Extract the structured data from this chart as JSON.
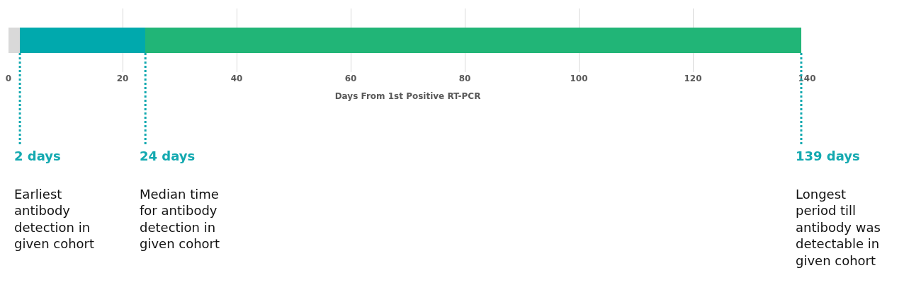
{
  "chart_data": {
    "type": "bar",
    "orientation": "horizontal",
    "stacked": true,
    "xlabel": "Days From 1st Positive RT-PCR",
    "categories": [
      null
    ],
    "series": [
      {
        "color": "#d9d9d9",
        "values": [
          2
        ]
      },
      {
        "color": "#00a9ad",
        "values": [
          22
        ]
      },
      {
        "color": "#21b577",
        "values": [
          115
        ]
      }
    ],
    "xlim": [
      0,
      140
    ],
    "xticks": [
      0,
      20,
      40,
      60,
      80,
      100,
      120,
      140
    ],
    "grid": "x",
    "tick_labels": "x",
    "ref_lines": [
      {
        "axis": "x",
        "value": 2,
        "label": "2 days",
        "color": "#13a9b0",
        "line_style": "dotted"
      },
      {
        "axis": "x",
        "value": 24,
        "label": "24 days",
        "color": "#13a9b0",
        "line_style": "dotted"
      },
      {
        "axis": "x",
        "value": 139,
        "label": "139 days",
        "color": "#13a9b0",
        "line_style": "dotted"
      }
    ],
    "annotations": [
      "Earliest antibody detection in given cohort",
      "Median time for antibody detection in given cohort",
      "Longest period till antibody was detectable in given cohort"
    ]
  }
}
